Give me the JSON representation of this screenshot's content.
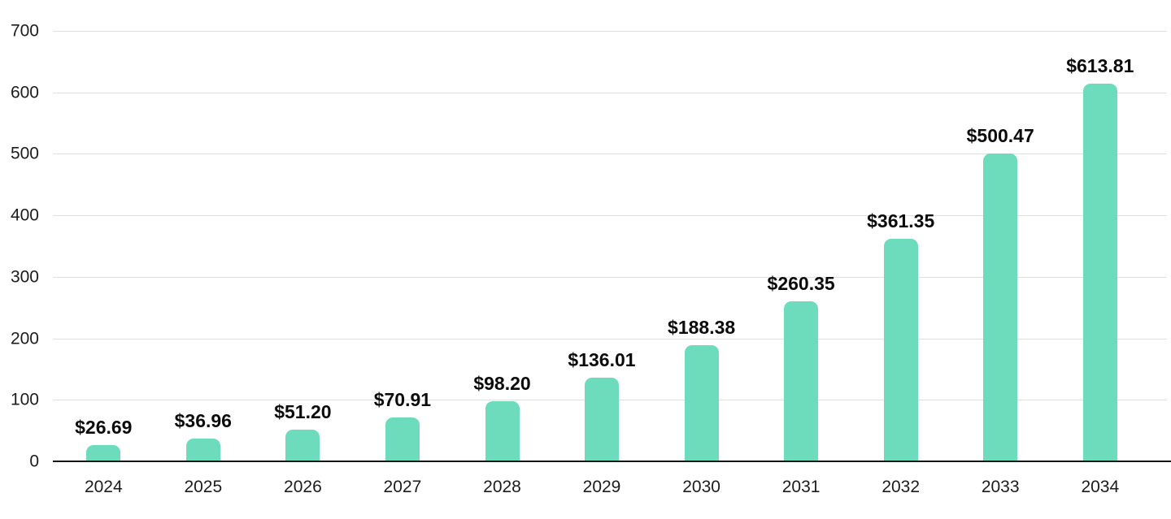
{
  "chart_data": {
    "type": "bar",
    "title": "",
    "xlabel": "",
    "ylabel": "",
    "categories": [
      "2024",
      "2025",
      "2026",
      "2027",
      "2028",
      "2029",
      "2030",
      "2031",
      "2032",
      "2033",
      "2034"
    ],
    "values": [
      26.69,
      36.96,
      51.2,
      70.91,
      98.2,
      136.01,
      188.38,
      260.35,
      361.35,
      500.47,
      613.81
    ],
    "value_labels": [
      "$26.69",
      "$36.96",
      "$51.20",
      "$70.91",
      "$98.20",
      "$136.01",
      "$188.38",
      "$260.35",
      "$361.35",
      "$500.47",
      "$613.81"
    ],
    "ylim": [
      0,
      700
    ],
    "ytick_step": 100,
    "yticks": [
      "0",
      "100",
      "200",
      "300",
      "400",
      "500",
      "600",
      "700"
    ],
    "grid": true,
    "legend": false,
    "colors": {
      "bar": "#6cdcbd",
      "grid": "#e0e0e0",
      "axis": "#151515",
      "value_label": "#0c0c0c",
      "tick_label": "#1c1c1c"
    }
  }
}
